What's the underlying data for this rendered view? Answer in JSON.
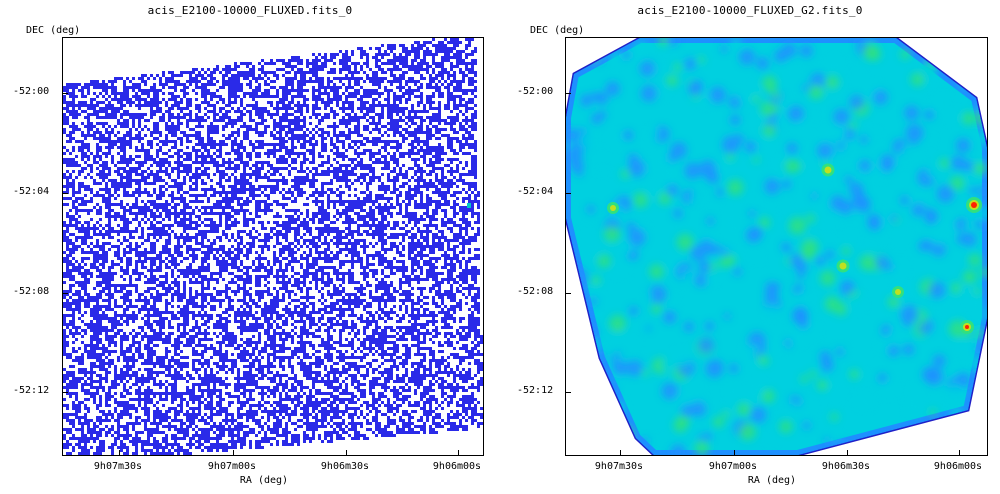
{
  "panels": [
    {
      "title": "acis_E2100-10000_FLUXED.fits_0",
      "y_axis_label": "DEC (deg)",
      "x_axis_label": "RA (deg)",
      "y_ticks": [
        "-52:00",
        "-52:04",
        "-52:08",
        "-52:12"
      ],
      "x_ticks": [
        "9h07m30s",
        "9h07m00s",
        "9h06m30s",
        "9h06m00s"
      ],
      "colormap": [
        "#ffffff",
        "#2a2ae8",
        "#00c8c8"
      ],
      "style": "sparse-pixel-noise"
    },
    {
      "title": "acis_E2100-10000_FLUXED_G2.fits_0",
      "y_axis_label": "DEC (deg)",
      "x_axis_label": "RA (deg)",
      "y_ticks": [
        "-52:00",
        "-52:04",
        "-52:08",
        "-52:12"
      ],
      "x_ticks": [
        "9h07m30s",
        "9h07m00s",
        "9h06m30s",
        "9h06m00s"
      ],
      "colormap": [
        "#1a1ad0",
        "#1e90ff",
        "#00d0e0",
        "#30e080",
        "#c0e020",
        "#ff2000"
      ],
      "style": "smoothed"
    }
  ]
}
